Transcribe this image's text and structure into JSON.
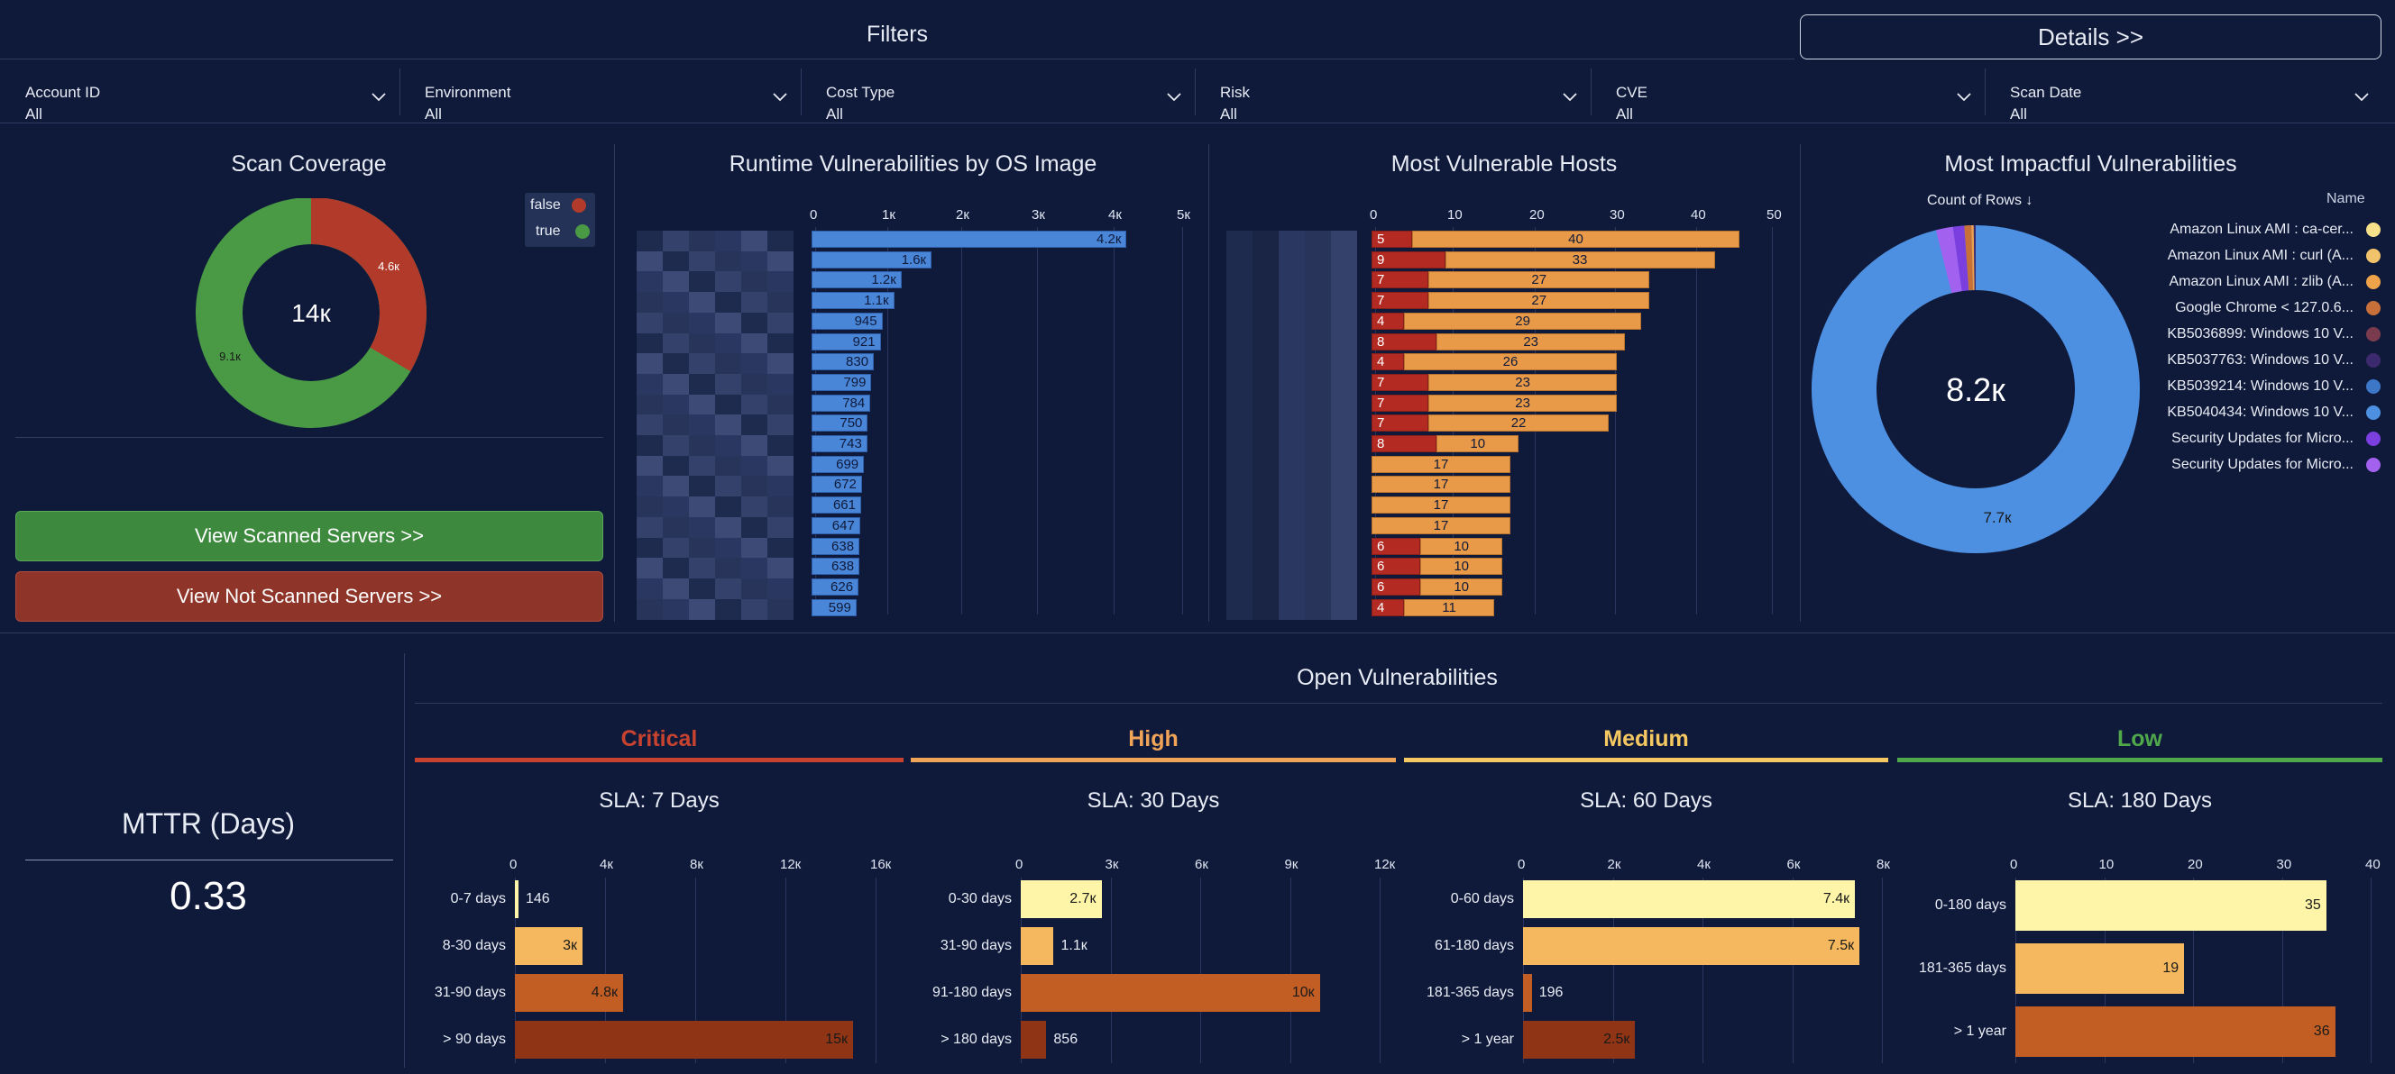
{
  "filters": {
    "title": "Filters",
    "details_button": "Details >>",
    "items": [
      {
        "label": "Account ID",
        "value": "All"
      },
      {
        "label": "Environment",
        "value": "All"
      },
      {
        "label": "Cost Type",
        "value": "All"
      },
      {
        "label": "Risk",
        "value": "All"
      },
      {
        "label": "CVE",
        "value": "All"
      },
      {
        "label": "Scan Date",
        "value": "All"
      }
    ]
  },
  "scan_coverage": {
    "title": "Scan Coverage",
    "center": "14к",
    "legend": [
      {
        "label": "false",
        "color": "#b23a2a"
      },
      {
        "label": "true",
        "color": "#4a9a45"
      }
    ],
    "slice_labels": {
      "false": "4.6к",
      "true": "9.1к"
    },
    "view_scanned": "View Scanned Servers >>",
    "view_not_scanned": "View Not Scanned Servers >>"
  },
  "runtime": {
    "title": "Runtime Vulnerabilities by OS Image",
    "ticks": [
      "0",
      "1к",
      "2к",
      "3к",
      "4к",
      "5к"
    ],
    "bar_labels": [
      "4.2к",
      "1.6к",
      "1.2к",
      "1.1к",
      "945",
      "921",
      "830",
      "799",
      "784",
      "750",
      "743",
      "699",
      "672",
      "661",
      "647",
      "638",
      "638",
      "626",
      "599"
    ]
  },
  "hosts": {
    "title": "Most Vulnerable Hosts",
    "ticks": [
      "0",
      "10",
      "20",
      "30",
      "40",
      "50"
    ],
    "red_labels": [
      "5",
      "9",
      "7",
      "7",
      "4",
      "8",
      "4",
      "7",
      "7",
      "7",
      "8",
      "",
      "",
      "",
      "",
      "6",
      "6",
      "6",
      "4"
    ],
    "orange_labels": [
      "40",
      "33",
      "27",
      "27",
      "29",
      "23",
      "26",
      "23",
      "23",
      "22",
      "10",
      "17",
      "17",
      "17",
      "17",
      "10",
      "10",
      "10",
      "11"
    ]
  },
  "impactful": {
    "title": "Most Impactful Vulnerabilities",
    "sort_label": "Count of Rows ↓",
    "legend_header": "Name",
    "center": "8.2к",
    "main_slice_label": "7.7к",
    "legend": [
      {
        "label": "Amazon Linux AMI : ca-cer...",
        "color": "#f7e08a"
      },
      {
        "label": "Amazon Linux AMI : curl (A...",
        "color": "#f2c36b"
      },
      {
        "label": "Amazon Linux AMI : zlib (A...",
        "color": "#eea24a"
      },
      {
        "label": "Google Chrome < 127.0.6...",
        "color": "#c8703a"
      },
      {
        "label": "KB5036899: Windows 10 V...",
        "color": "#7a3b4e"
      },
      {
        "label": "KB5037763: Windows 10 V...",
        "color": "#3c2a6e"
      },
      {
        "label": "KB5039214: Windows 10 V...",
        "color": "#3d78c8"
      },
      {
        "label": "KB5040434: Windows 10 V...",
        "color": "#4d90e2"
      },
      {
        "label": "Security Updates for Micro...",
        "color": "#7b3fe0"
      },
      {
        "label": "Security Updates for Micro...",
        "color": "#a361f0"
      }
    ]
  },
  "mttr": {
    "title": "MTTR (Days)",
    "value": "0.33"
  },
  "open_vulns": {
    "title": "Open Vulnerabilities",
    "severities": [
      {
        "name": "Critical",
        "color": "#c8432f",
        "sla": "SLA: 7 Days",
        "ticks": [
          "0",
          "4к",
          "8к",
          "12к",
          "16к"
        ],
        "rows": [
          {
            "cat": "0-7 days",
            "label": "146"
          },
          {
            "cat": "8-30 days",
            "label": "3к"
          },
          {
            "cat": "31-90 days",
            "label": "4.8к"
          },
          {
            "cat": "> 90 days",
            "label": "15к"
          }
        ]
      },
      {
        "name": "High",
        "color": "#f0a458",
        "sla": "SLA: 30 Days",
        "ticks": [
          "0",
          "3к",
          "6к",
          "9к",
          "12к"
        ],
        "rows": [
          {
            "cat": "0-30 days",
            "label": "2.7к"
          },
          {
            "cat": "31-90 days",
            "label": "1.1к"
          },
          {
            "cat": "91-180 days",
            "label": "10к"
          },
          {
            "cat": "> 180 days",
            "label": "856"
          }
        ]
      },
      {
        "name": "Medium",
        "color": "#f5c862",
        "sla": "SLA: 60 Days",
        "ticks": [
          "0",
          "2к",
          "4к",
          "6к",
          "8к"
        ],
        "rows": [
          {
            "cat": "0-60 days",
            "label": "7.4к"
          },
          {
            "cat": "61-180 days",
            "label": "7.5к"
          },
          {
            "cat": "181-365 days",
            "label": "196"
          },
          {
            "cat": "> 1 year",
            "label": "2.5к"
          }
        ]
      },
      {
        "name": "Low",
        "color": "#4fa84a",
        "sla": "SLA: 180 Days",
        "ticks": [
          "0",
          "10",
          "20",
          "30",
          "40"
        ],
        "rows": [
          {
            "cat": "0-180 days",
            "label": "35"
          },
          {
            "cat": "181-365 days",
            "label": "19"
          },
          {
            "cat": "> 1 year",
            "label": "36"
          }
        ]
      }
    ]
  },
  "chart_data": [
    {
      "type": "pie",
      "title": "Scan Coverage",
      "categories": [
        "false",
        "true"
      ],
      "values": [
        4600,
        9100
      ]
    },
    {
      "type": "bar",
      "title": "Runtime Vulnerabilities by OS Image",
      "values": [
        4200,
        1600,
        1200,
        1100,
        945,
        921,
        830,
        799,
        784,
        750,
        743,
        699,
        672,
        661,
        647,
        638,
        638,
        626,
        599
      ],
      "xlim": [
        0,
        5000
      ]
    },
    {
      "type": "bar",
      "title": "Most Vulnerable Hosts",
      "series": [
        {
          "values": [
            5,
            9,
            7,
            7,
            4,
            8,
            4,
            7,
            7,
            7,
            8,
            0,
            0,
            0,
            0,
            6,
            6,
            6,
            4
          ]
        },
        {
          "values": [
            40,
            33,
            27,
            27,
            29,
            23,
            26,
            23,
            23,
            22,
            10,
            17,
            17,
            17,
            17,
            10,
            10,
            10,
            11
          ]
        }
      ],
      "xlim": [
        0,
        50
      ]
    },
    {
      "type": "pie",
      "title": "Most Impactful Vulnerabilities",
      "values": [
        7700,
        500
      ]
    },
    {
      "type": "bar",
      "title": "Critical",
      "categories": [
        "0-7 days",
        "8-30 days",
        "31-90 days",
        "> 90 days"
      ],
      "values": [
        146,
        3000,
        4800,
        15000
      ],
      "xlim": [
        0,
        16000
      ]
    },
    {
      "type": "bar",
      "title": "High",
      "categories": [
        "0-30 days",
        "31-90 days",
        "91-180 days",
        "> 180 days"
      ],
      "values": [
        2700,
        1100,
        10000,
        856
      ],
      "xlim": [
        0,
        12000
      ]
    },
    {
      "type": "bar",
      "title": "Medium",
      "categories": [
        "0-60 days",
        "61-180 days",
        "181-365 days",
        "> 1 year"
      ],
      "values": [
        7400,
        7500,
        196,
        2500
      ],
      "xlim": [
        0,
        8000
      ]
    },
    {
      "type": "bar",
      "title": "Low",
      "categories": [
        "0-180 days",
        "181-365 days",
        "> 1 year"
      ],
      "values": [
        35,
        19,
        36
      ],
      "xlim": [
        0,
        40
      ]
    }
  ]
}
